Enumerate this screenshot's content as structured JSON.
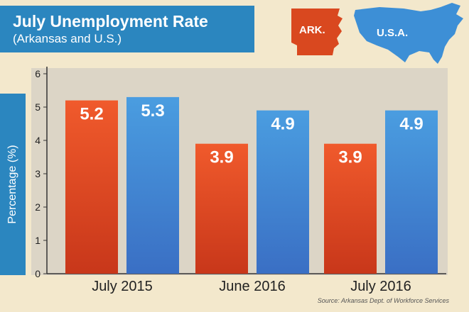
{
  "header": {
    "title": "July Unemployment Rate",
    "subtitle": "(Arkansas and U.S.)"
  },
  "legend": {
    "ark_label": "ARK.",
    "usa_label": "U.S.A.",
    "ark_icon": "arkansas-map-icon",
    "usa_icon": "usa-map-icon"
  },
  "source": "Source: Arkansas Dept. of Workforce Services",
  "colors": {
    "ark": "#e8542a",
    "usa": "#3d8fd6",
    "accent_blue": "#2b86bf",
    "background": "#f3e8cc"
  },
  "chart_data": {
    "type": "bar",
    "ylabel": "Percentage (%)",
    "ylim": [
      0,
      6
    ],
    "yticks": [
      0,
      1,
      2,
      3,
      4,
      5,
      6
    ],
    "categories": [
      "July 2015",
      "June 2016",
      "July 2016"
    ],
    "series": [
      {
        "name": "ARK.",
        "values": [
          5.2,
          3.9,
          3.9
        ]
      },
      {
        "name": "U.S.A.",
        "values": [
          5.3,
          4.9,
          4.9
        ]
      }
    ],
    "grid": false,
    "legend_position": "top-right"
  }
}
